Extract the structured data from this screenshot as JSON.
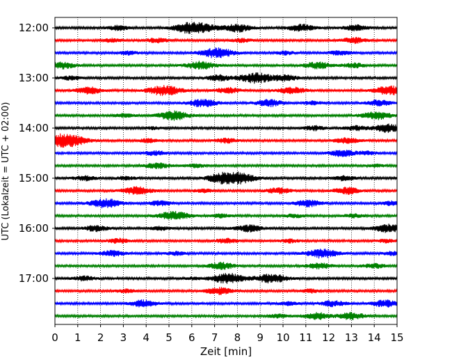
{
  "chart_data": {
    "type": "line",
    "chart_kind": "helicorder",
    "xlabel": "Zeit  [min]",
    "ylabel": "UTC (Lokalzeit = UTC + 02:00)",
    "xlim": [
      0,
      15
    ],
    "x_ticks": [
      0,
      1,
      2,
      3,
      4,
      5,
      6,
      7,
      8,
      9,
      10,
      11,
      12,
      13,
      14,
      15
    ],
    "y_tick_labels": [
      "12:00",
      "13:00",
      "14:00",
      "15:00",
      "16:00",
      "17:00"
    ],
    "grid_x": "dotted",
    "trace_colors": [
      "#000000",
      "#ff0000",
      "#0000ff",
      "#008000"
    ],
    "traces": [
      {
        "start": "12:00",
        "events": [
          [
            2.8,
            0.4
          ],
          [
            5.6,
            0.5
          ],
          [
            6.3,
            0.9
          ],
          [
            8.0,
            0.7
          ],
          [
            10.8,
            0.6
          ],
          [
            13.2,
            0.5
          ]
        ]
      },
      {
        "start": "12:15",
        "events": [
          [
            2.5,
            0.3
          ],
          [
            4.5,
            0.4
          ],
          [
            8.2,
            0.3
          ],
          [
            13.1,
            0.5
          ]
        ]
      },
      {
        "start": "12:30",
        "events": [
          [
            3.2,
            0.3
          ],
          [
            7.1,
            0.9
          ],
          [
            10.1,
            0.3
          ],
          [
            12.5,
            0.4
          ]
        ]
      },
      {
        "start": "12:45",
        "events": [
          [
            0.3,
            0.6
          ],
          [
            6.4,
            0.7
          ],
          [
            11.5,
            0.6
          ],
          [
            13.1,
            0.4
          ]
        ]
      },
      {
        "start": "13:00",
        "events": [
          [
            0.7,
            0.3
          ],
          [
            7.2,
            0.5
          ],
          [
            8.8,
            0.9
          ],
          [
            10.1,
            0.5
          ]
        ]
      },
      {
        "start": "13:15",
        "events": [
          [
            1.5,
            0.6
          ],
          [
            4.8,
            0.9
          ],
          [
            7.6,
            0.5
          ],
          [
            10.4,
            0.6
          ],
          [
            14.7,
            0.8
          ]
        ]
      },
      {
        "start": "13:30",
        "events": [
          [
            6.5,
            0.7
          ],
          [
            9.4,
            0.6
          ],
          [
            11.3,
            0.3
          ],
          [
            14.2,
            0.5
          ]
        ]
      },
      {
        "start": "13:45",
        "events": [
          [
            3.0,
            0.3
          ],
          [
            5.2,
            0.8
          ],
          [
            14.1,
            0.7
          ]
        ]
      },
      {
        "start": "14:00",
        "events": [
          [
            4.3,
            0.2
          ],
          [
            11.4,
            0.4
          ],
          [
            13.2,
            0.4
          ],
          [
            14.6,
            0.7
          ]
        ]
      },
      {
        "start": "14:15",
        "events": [
          [
            0.2,
            0.6
          ],
          [
            0.7,
            0.9
          ],
          [
            4.1,
            0.3
          ],
          [
            7.5,
            0.4
          ],
          [
            12.8,
            0.5
          ]
        ]
      },
      {
        "start": "14:30",
        "events": [
          [
            4.4,
            0.4
          ],
          [
            12.6,
            0.6
          ],
          [
            13.7,
            0.3
          ]
        ]
      },
      {
        "start": "14:45",
        "events": [
          [
            4.5,
            0.5
          ],
          [
            6.2,
            0.3
          ],
          [
            14.1,
            0.2
          ]
        ]
      },
      {
        "start": "15:00",
        "events": [
          [
            1.3,
            0.4
          ],
          [
            3.1,
            0.3
          ],
          [
            7.2,
            0.6
          ],
          [
            8.0,
            1.0
          ],
          [
            12.7,
            0.4
          ]
        ]
      },
      {
        "start": "15:15",
        "events": [
          [
            3.6,
            0.7
          ],
          [
            6.5,
            0.3
          ],
          [
            9.8,
            0.5
          ],
          [
            12.8,
            0.6
          ]
        ]
      },
      {
        "start": "15:30",
        "events": [
          [
            2.2,
            0.8
          ],
          [
            4.6,
            0.4
          ],
          [
            11.1,
            0.6
          ],
          [
            14.8,
            0.4
          ]
        ]
      },
      {
        "start": "15:45",
        "events": [
          [
            5.2,
            0.8
          ],
          [
            7.3,
            0.3
          ],
          [
            10.5,
            0.3
          ],
          [
            13.1,
            0.3
          ]
        ]
      },
      {
        "start": "16:00",
        "events": [
          [
            1.8,
            0.5
          ],
          [
            4.6,
            0.3
          ],
          [
            8.5,
            0.6
          ],
          [
            14.6,
            0.7
          ]
        ]
      },
      {
        "start": "16:15",
        "events": [
          [
            2.8,
            0.4
          ],
          [
            7.5,
            0.4
          ],
          [
            10.3,
            0.3
          ],
          [
            14.5,
            0.3
          ]
        ]
      },
      {
        "start": "16:30",
        "events": [
          [
            2.5,
            0.5
          ],
          [
            5.3,
            0.3
          ],
          [
            11.7,
            0.8
          ],
          [
            14.8,
            0.3
          ]
        ]
      },
      {
        "start": "16:45",
        "events": [
          [
            7.3,
            0.6
          ],
          [
            11.6,
            0.5
          ],
          [
            14.0,
            0.4
          ]
        ]
      },
      {
        "start": "17:00",
        "events": [
          [
            1.3,
            0.4
          ],
          [
            7.6,
            0.9
          ],
          [
            9.5,
            0.8
          ],
          [
            6.0,
            0.2
          ]
        ]
      },
      {
        "start": "17:15",
        "events": [
          [
            3.1,
            0.3
          ],
          [
            7.2,
            0.6
          ],
          [
            11.2,
            0.3
          ]
        ]
      },
      {
        "start": "17:30",
        "events": [
          [
            3.9,
            0.6
          ],
          [
            10.2,
            0.3
          ],
          [
            12.2,
            0.5
          ],
          [
            14.5,
            0.6
          ]
        ]
      },
      {
        "start": "17:45",
        "events": [
          [
            9.8,
            0.3
          ],
          [
            11.5,
            0.6
          ],
          [
            13.0,
            0.6
          ]
        ]
      }
    ]
  }
}
